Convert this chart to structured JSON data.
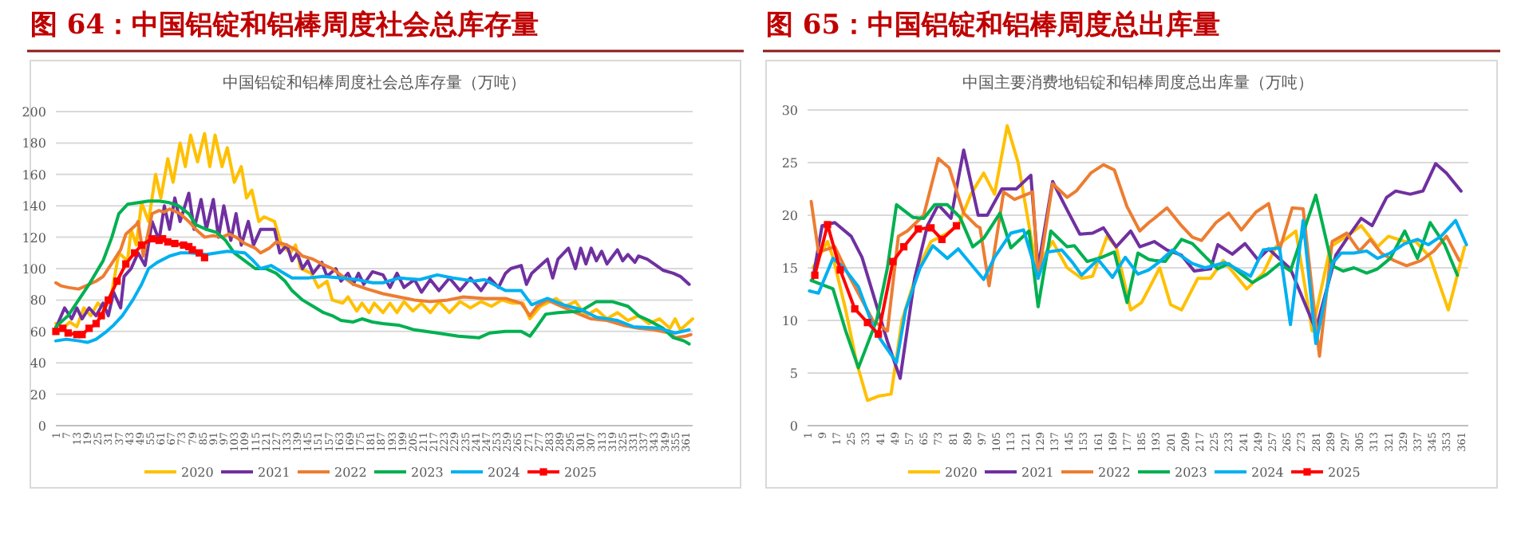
{
  "chart_data": [
    {
      "type": "line",
      "title": "图 64：中国铝锭和铝棒周度社会总库存量",
      "subtitle": "中国铝锭和铝棒周度社会总库存量（万吨）",
      "xlim": [
        1,
        365
      ],
      "ylim": [
        0,
        200
      ],
      "yticks": [
        0,
        20,
        40,
        60,
        80,
        100,
        120,
        140,
        160,
        180,
        200
      ],
      "xticks": [
        1,
        7,
        13,
        19,
        25,
        31,
        37,
        43,
        49,
        55,
        61,
        67,
        73,
        79,
        85,
        91,
        97,
        103,
        109,
        115,
        121,
        127,
        133,
        139,
        145,
        151,
        157,
        163,
        169,
        175,
        181,
        187,
        193,
        199,
        205,
        211,
        217,
        223,
        229,
        235,
        241,
        247,
        253,
        259,
        265,
        271,
        277,
        283,
        289,
        295,
        301,
        307,
        313,
        319,
        325,
        331,
        337,
        343,
        349,
        355,
        361
      ],
      "grid": "y",
      "legend": "bottom",
      "series": [
        {
          "name": "2020",
          "color": "#ffc000",
          "x": [
            1,
            5,
            9,
            13,
            17,
            21,
            25,
            29,
            33,
            37,
            42,
            44,
            47,
            50,
            54,
            58,
            61,
            65,
            68,
            72,
            75,
            78,
            82,
            86,
            89,
            92,
            96,
            99,
            103,
            107,
            110,
            113,
            117,
            120,
            126,
            130,
            135,
            138,
            141,
            147,
            151,
            156,
            159,
            165,
            168,
            173,
            176,
            180,
            183,
            188,
            192,
            196,
            200,
            205,
            210,
            215,
            220,
            226,
            232,
            238,
            244,
            250,
            256,
            262,
            268,
            272,
            278,
            287,
            292,
            298,
            304,
            310,
            316,
            322,
            328,
            334,
            340,
            346,
            352,
            355,
            358,
            365
          ],
          "values": [
            65,
            62,
            66,
            63,
            75,
            70,
            78,
            74,
            85,
            110,
            105,
            125,
            115,
            142,
            130,
            160,
            145,
            170,
            155,
            180,
            165,
            185,
            168,
            186,
            165,
            185,
            165,
            177,
            155,
            165,
            145,
            150,
            130,
            133,
            130,
            115,
            110,
            115,
            100,
            97,
            88,
            92,
            80,
            78,
            82,
            73,
            78,
            72,
            78,
            72,
            78,
            72,
            79,
            73,
            78,
            72,
            79,
            72,
            79,
            75,
            79,
            76,
            80,
            78,
            78,
            68,
            76,
            81,
            76,
            79,
            70,
            74,
            68,
            72,
            67,
            70,
            65,
            68,
            62,
            68,
            61,
            68
          ]
        },
        {
          "name": "2021",
          "color": "#7030a0",
          "x": [
            1,
            6,
            10,
            13,
            16,
            20,
            24,
            28,
            31,
            34,
            38,
            40,
            44,
            48,
            52,
            56,
            60,
            63,
            66,
            69,
            72,
            77,
            80,
            84,
            87,
            91,
            94,
            97,
            101,
            104,
            107,
            111,
            114,
            118,
            126,
            129,
            133,
            136,
            139,
            142,
            145,
            148,
            153,
            156,
            161,
            164,
            168,
            171,
            174,
            177,
            182,
            188,
            192,
            196,
            200,
            206,
            210,
            215,
            220,
            226,
            232,
            238,
            244,
            249,
            254,
            258,
            261,
            267,
            270,
            273,
            279,
            282,
            285,
            288,
            294,
            298,
            301,
            304,
            307,
            310,
            313,
            316,
            322,
            325,
            328,
            332,
            334,
            339,
            343,
            348,
            354,
            358,
            363
          ],
          "values": [
            62,
            75,
            68,
            75,
            68,
            75,
            70,
            78,
            70,
            85,
            75,
            95,
            100,
            110,
            102,
            130,
            118,
            140,
            125,
            145,
            130,
            148,
            125,
            144,
            125,
            144,
            120,
            140,
            118,
            135,
            115,
            130,
            115,
            125,
            125,
            110,
            115,
            105,
            110,
            100,
            105,
            97,
            104,
            95,
            100,
            92,
            97,
            90,
            97,
            90,
            98,
            96,
            88,
            97,
            88,
            93,
            85,
            93,
            86,
            94,
            86,
            94,
            86,
            94,
            88,
            97,
            100,
            102,
            90,
            97,
            103,
            106,
            94,
            106,
            113,
            100,
            113,
            103,
            113,
            105,
            111,
            103,
            112,
            105,
            109,
            104,
            108,
            106,
            103,
            99,
            97,
            95,
            90
          ]
        },
        {
          "name": "2022",
          "color": "#ed7d31",
          "x": [
            1,
            4,
            8,
            14,
            20,
            24,
            28,
            34,
            38,
            41,
            47,
            48,
            51,
            56,
            60,
            63,
            66,
            72,
            77,
            81,
            86,
            91,
            96,
            100,
            104,
            109,
            115,
            118,
            123,
            127,
            133,
            138,
            142,
            148,
            153,
            159,
            165,
            171,
            179,
            188,
            197,
            206,
            215,
            225,
            234,
            246,
            258,
            267,
            272,
            276,
            282,
            288,
            298,
            307,
            316,
            325,
            334,
            343,
            352,
            355,
            361,
            364
          ],
          "values": [
            91,
            89,
            88,
            87,
            90,
            92,
            95,
            105,
            112,
            122,
            128,
            130,
            108,
            135,
            137,
            136,
            138,
            135,
            130,
            125,
            120,
            121,
            120,
            122,
            120,
            116,
            113,
            110,
            113,
            117,
            115,
            112,
            108,
            106,
            103,
            100,
            95,
            90,
            87,
            84,
            82,
            80,
            79,
            80,
            82,
            81,
            81,
            78,
            70,
            76,
            80,
            77,
            72,
            68,
            67,
            64,
            62,
            61,
            59,
            56,
            57,
            58
          ]
        },
        {
          "name": "2023",
          "color": "#00b050",
          "x": [
            1,
            8,
            14,
            20,
            28,
            33,
            37,
            42,
            48,
            54,
            60,
            66,
            71,
            77,
            81,
            87,
            93,
            98,
            103,
            109,
            115,
            121,
            127,
            132,
            136,
            142,
            148,
            154,
            159,
            164,
            171,
            176,
            182,
            188,
            197,
            206,
            219,
            231,
            243,
            249,
            258,
            267,
            272,
            276,
            281,
            288,
            301,
            310,
            319,
            328,
            334,
            340,
            348,
            354,
            360,
            363
          ],
          "values": [
            63,
            70,
            80,
            90,
            105,
            120,
            135,
            141,
            142,
            143,
            143,
            142,
            140,
            135,
            128,
            125,
            123,
            118,
            110,
            105,
            100,
            100,
            97,
            92,
            86,
            80,
            76,
            72,
            70,
            67,
            66,
            68,
            66,
            65,
            64,
            61,
            59,
            57,
            56,
            59,
            60,
            60,
            57,
            63,
            71,
            72,
            73,
            79,
            79,
            76,
            70,
            67,
            62,
            56,
            54,
            52
          ]
        },
        {
          "name": "2024",
          "color": "#00b0f0",
          "x": [
            1,
            7,
            14,
            19,
            24,
            30,
            34,
            39,
            45,
            50,
            54,
            59,
            66,
            72,
            78,
            87,
            93,
            99,
            109,
            113,
            118,
            124,
            130,
            136,
            145,
            154,
            164,
            173,
            182,
            188,
            197,
            209,
            219,
            228,
            240,
            246,
            258,
            267,
            273,
            282,
            291,
            301,
            310,
            322,
            331,
            346,
            355,
            363
          ],
          "values": [
            54,
            55,
            54,
            53,
            55,
            60,
            64,
            70,
            80,
            90,
            100,
            104,
            108,
            110,
            110,
            109,
            110,
            111,
            110,
            106,
            100,
            102,
            98,
            94,
            94,
            95,
            94,
            93,
            91,
            91,
            94,
            93,
            96,
            94,
            92,
            93,
            86,
            86,
            77,
            81,
            77,
            74,
            69,
            67,
            63,
            62,
            59,
            61
          ]
        },
        {
          "name": "2025",
          "color": "#ff0000",
          "marker": "square",
          "x": [
            1,
            5,
            8,
            13,
            16,
            20,
            24,
            27,
            31,
            36,
            41,
            46,
            50,
            56,
            60,
            62,
            65,
            69,
            74,
            77,
            79,
            83,
            86
          ],
          "values": [
            60,
            62,
            59,
            58,
            58,
            62,
            65,
            70,
            80,
            92,
            103,
            110,
            115,
            119,
            118,
            119,
            117,
            116,
            115,
            114,
            112,
            110,
            107
          ]
        }
      ]
    },
    {
      "type": "line",
      "title": "图 65：中国铝锭和铝棒周度总出库量",
      "subtitle": "中国主要消费地铝锭和铝棒周度总出库量（万吨）",
      "xlim": [
        1,
        365
      ],
      "ylim": [
        0,
        30
      ],
      "yticks": [
        0,
        5,
        10,
        15,
        20,
        25,
        30
      ],
      "xticks": [
        1,
        9,
        17,
        25,
        33,
        41,
        49,
        57,
        65,
        73,
        81,
        89,
        97,
        105,
        113,
        121,
        129,
        137,
        145,
        153,
        161,
        169,
        177,
        185,
        193,
        201,
        209,
        217,
        225,
        233,
        241,
        249,
        257,
        265,
        273,
        281,
        289,
        297,
        305,
        313,
        321,
        329,
        337,
        345,
        353,
        361
      ],
      "grid": "y",
      "legend": "bottom",
      "series": [
        {
          "name": "2020",
          "color": "#ffc000",
          "x": [
            4,
            12,
            15,
            22,
            28,
            34,
            40,
            47,
            53,
            62,
            69,
            78,
            84,
            91,
            98,
            104,
            111,
            117,
            122,
            127,
            136,
            144,
            152,
            158,
            166,
            171,
            179,
            185,
            189,
            195,
            201,
            207,
            216,
            223,
            230,
            243,
            252,
            259,
            270,
            279,
            289,
            298,
            306,
            315,
            321,
            330,
            336,
            344,
            349,
            354,
            363
          ],
          "values": [
            15,
            17.5,
            16,
            11,
            6,
            2.4,
            2.8,
            3,
            10,
            15,
            17.5,
            18.3,
            19,
            22,
            24,
            22,
            28.5,
            25,
            20,
            15,
            17.5,
            15,
            14,
            14.2,
            18,
            17,
            11,
            11.7,
            13,
            15,
            11.5,
            11,
            14,
            14,
            15.7,
            13,
            14.5,
            17,
            18.5,
            9,
            17,
            18,
            19,
            17,
            18,
            17.5,
            17.5,
            16,
            13.5,
            11,
            17
          ]
        },
        {
          "name": "2021",
          "color": "#7030a0",
          "x": [
            4,
            9,
            16,
            25,
            31,
            38,
            45,
            52,
            60,
            67,
            73,
            80,
            87,
            95,
            100,
            108,
            116,
            124,
            128,
            136,
            144,
            151,
            158,
            164,
            171,
            179,
            184,
            189,
            192,
            199,
            207,
            214,
            223,
            227,
            235,
            242,
            249,
            255,
            267,
            281,
            292,
            299,
            306,
            312,
            320,
            325,
            333,
            340,
            347,
            353,
            361
          ],
          "values": [
            14,
            19,
            19.3,
            18,
            16,
            12,
            8,
            4.5,
            14,
            19,
            21,
            19.7,
            26.2,
            20,
            20,
            22.5,
            22.5,
            23.8,
            15,
            23.2,
            20.5,
            18.2,
            18.3,
            18.8,
            17,
            18.5,
            17,
            17.3,
            17.5,
            16.7,
            16.2,
            14.7,
            14.9,
            17.2,
            16.3,
            17.3,
            15.8,
            16.8,
            14.9,
            9.1,
            16.2,
            18,
            19.7,
            19,
            21.7,
            22.3,
            22,
            22.3,
            24.9,
            24,
            22.3
          ]
        },
        {
          "name": "2022",
          "color": "#ed7d31",
          "x": [
            3,
            7,
            16,
            23,
            37,
            45,
            51,
            56,
            65,
            73,
            79,
            87,
            94,
            96,
            101,
            109,
            115,
            122,
            125,
            128,
            136,
            144,
            149,
            157,
            164,
            170,
            177,
            184,
            189,
            192,
            199,
            207,
            213,
            218,
            226,
            233,
            240,
            248,
            255,
            261,
            268,
            274,
            283,
            290,
            298,
            305,
            311,
            317,
            324,
            331,
            339,
            346,
            353,
            360
          ],
          "values": [
            21.3,
            16.5,
            17,
            14.5,
            10,
            9,
            18,
            18.5,
            20,
            25.4,
            24.5,
            20.2,
            19,
            18.8,
            13.3,
            22.2,
            21.5,
            22,
            22.2,
            14,
            23,
            21.7,
            22.3,
            24,
            24.8,
            24.3,
            20.8,
            18.5,
            19.3,
            19.7,
            20.7,
            19,
            17.9,
            17.6,
            19.3,
            20.2,
            18.6,
            20.3,
            21.1,
            16.7,
            20.7,
            20.6,
            6.6,
            17.5,
            18.3,
            16.6,
            17.7,
            16.4,
            15.7,
            15.2,
            15.7,
            16.6,
            18,
            15.7
          ]
        },
        {
          "name": "2023",
          "color": "#00b050",
          "x": [
            3,
            15,
            22,
            29,
            39,
            45,
            50,
            59,
            65,
            71,
            78,
            85,
            92,
            98,
            107,
            113,
            123,
            128,
            135,
            144,
            148,
            155,
            163,
            170,
            177,
            183,
            189,
            192,
            198,
            207,
            213,
            221,
            227,
            233,
            240,
            246,
            254,
            261,
            267,
            281,
            290,
            296,
            302,
            309,
            315,
            322,
            330,
            337,
            344,
            352,
            359
          ],
          "values": [
            13.8,
            13,
            9,
            5.5,
            10,
            15,
            21,
            19.8,
            19.7,
            21,
            21,
            19.8,
            17,
            17.8,
            20.2,
            16.9,
            18.5,
            11.3,
            18.5,
            17,
            17.1,
            15.6,
            16,
            16.5,
            11.7,
            16.4,
            15.8,
            15.7,
            15.6,
            17.7,
            17.3,
            15.9,
            14.9,
            15.4,
            14.4,
            13.6,
            14.4,
            15.4,
            14.7,
            21.9,
            15.2,
            14.7,
            15,
            14.5,
            14.9,
            15.9,
            18.5,
            15.9,
            19.3,
            17.2,
            14.3
          ]
        },
        {
          "name": "2024",
          "color": "#00b0f0",
          "x": [
            2,
            7,
            15,
            21,
            29,
            38,
            44,
            50,
            55,
            63,
            70,
            78,
            84,
            98,
            104,
            113,
            120,
            128,
            133,
            141,
            147,
            152,
            161,
            169,
            176,
            183,
            189,
            195,
            202,
            213,
            220,
            231,
            245,
            252,
            261,
            267,
            274,
            281,
            290,
            295,
            302,
            309,
            315,
            322,
            330,
            337,
            343,
            350,
            358,
            364
          ],
          "values": [
            12.8,
            12.6,
            15.9,
            15,
            13.2,
            9,
            7.5,
            6,
            11,
            15,
            17.1,
            15.9,
            16.8,
            13.9,
            16,
            18.3,
            18.6,
            14,
            16.5,
            16.7,
            15.5,
            14.3,
            15.8,
            14.1,
            16,
            14.4,
            14.8,
            15.6,
            16.7,
            15.4,
            15,
            15.5,
            14.2,
            16.7,
            16.9,
            9.6,
            19.5,
            7.8,
            15.4,
            16.4,
            16.4,
            16.6,
            15.9,
            16.4,
            17.3,
            17.7,
            17.2,
            18,
            19.5,
            17.2
          ]
        },
        {
          "name": "2025",
          "color": "#ff0000",
          "marker": "square",
          "x": [
            5,
            12,
            19,
            27,
            34,
            40,
            48,
            54,
            62,
            69,
            75,
            83
          ],
          "values": [
            14.3,
            19.1,
            14.8,
            11.1,
            9.8,
            8.7,
            15.6,
            17,
            18.7,
            18.8,
            17.7,
            19
          ]
        }
      ]
    }
  ]
}
